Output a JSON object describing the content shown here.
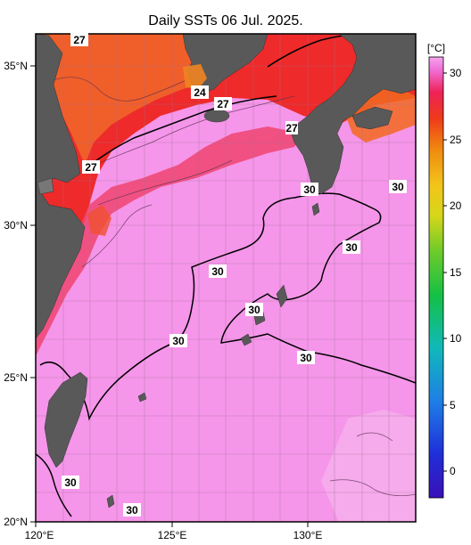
{
  "title": "Daily SSTs 06 Jul. 2025.",
  "colorbar": {
    "unit": "[°C]",
    "ticks": [
      "30",
      "25",
      "20",
      "15",
      "10",
      "5",
      "0"
    ],
    "range": [
      -2,
      31
    ]
  },
  "axes": {
    "x_ticks": [
      "120°E",
      "125°E",
      "130°E"
    ],
    "y_ticks": [
      "35°N",
      "30°N",
      "25°N",
      "20°N"
    ]
  },
  "contour_labels": [
    "27",
    "24",
    "27",
    "27",
    "27",
    "30",
    "30",
    "30",
    "30",
    "30",
    "30",
    "30",
    "30",
    "30"
  ],
  "colors": {
    "land": "#595959",
    "warm_sea": "#f593e8",
    "hot_sea": "#ef2b1e",
    "mid_sea": "#f02a4a"
  }
}
